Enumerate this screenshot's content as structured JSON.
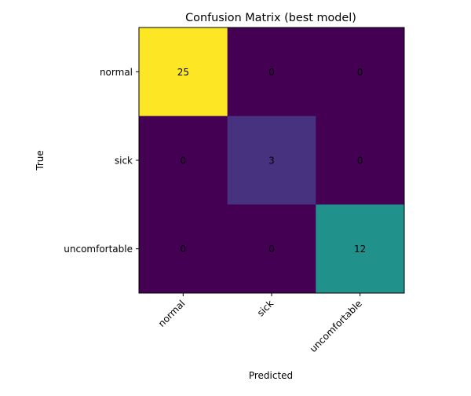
{
  "chart_data": {
    "type": "heatmap",
    "title": "Confusion Matrix (best model)",
    "xlabel": "Predicted",
    "ylabel": "True",
    "x_categories": [
      "normal",
      "sick",
      "uncomfortable"
    ],
    "y_categories": [
      "normal",
      "sick",
      "uncomfortable"
    ],
    "values": [
      [
        25,
        0,
        0
      ],
      [
        0,
        3,
        0
      ],
      [
        0,
        0,
        12
      ]
    ],
    "colormap": "viridis",
    "vmin": 0,
    "vmax": 25,
    "cell_colors": [
      [
        "#fde725",
        "#440154",
        "#440154"
      ],
      [
        "#440154",
        "#46327e",
        "#440154"
      ],
      [
        "#440154",
        "#440154",
        "#21918c"
      ]
    ],
    "annotations_shown": true,
    "grid": false
  }
}
